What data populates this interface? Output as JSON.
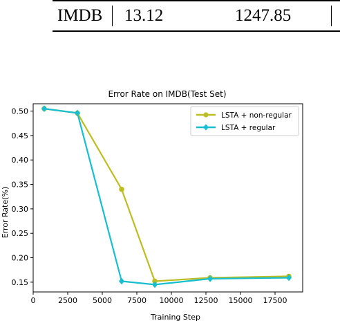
{
  "table": {
    "row": [
      "IMDB",
      "13.12",
      "1247.85"
    ]
  },
  "chart_data": {
    "type": "line",
    "title": "Error Rate on IMDB(Test Set)",
    "xlabel": "Training Step",
    "ylabel": "Error Rate(%)",
    "xlim": [
      0,
      19500
    ],
    "ylim": [
      0.13,
      0.515
    ],
    "xticks": [
      0,
      2500,
      5000,
      7500,
      10000,
      12500,
      15000,
      17500
    ],
    "yticks": [
      0.15,
      0.2,
      0.25,
      0.3,
      0.35,
      0.4,
      0.45,
      0.5
    ],
    "grid": false,
    "legend_position": "top-right",
    "series": [
      {
        "name": "LSTA + non-regular",
        "color": "#bcbd22",
        "marker": "circle",
        "x": [
          800,
          3200,
          6400,
          8800,
          12800,
          18500
        ],
        "y": [
          0.505,
          0.496,
          0.34,
          0.152,
          0.159,
          0.162
        ]
      },
      {
        "name": "LSTA + regular",
        "color": "#17becf",
        "marker": "diamond",
        "x": [
          800,
          3200,
          6400,
          8800,
          12800,
          18500
        ],
        "y": [
          0.505,
          0.496,
          0.152,
          0.145,
          0.157,
          0.159
        ]
      }
    ]
  }
}
